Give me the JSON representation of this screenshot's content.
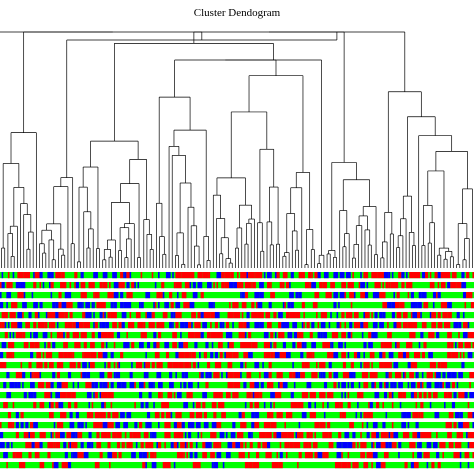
{
  "title": "Cluster Dendogram",
  "colors": {
    "background": "#ffffff",
    "tree_line": "#000000",
    "band_green": "#00ff00",
    "band_red": "#ff0000",
    "band_blue": "#0000ff"
  }
}
